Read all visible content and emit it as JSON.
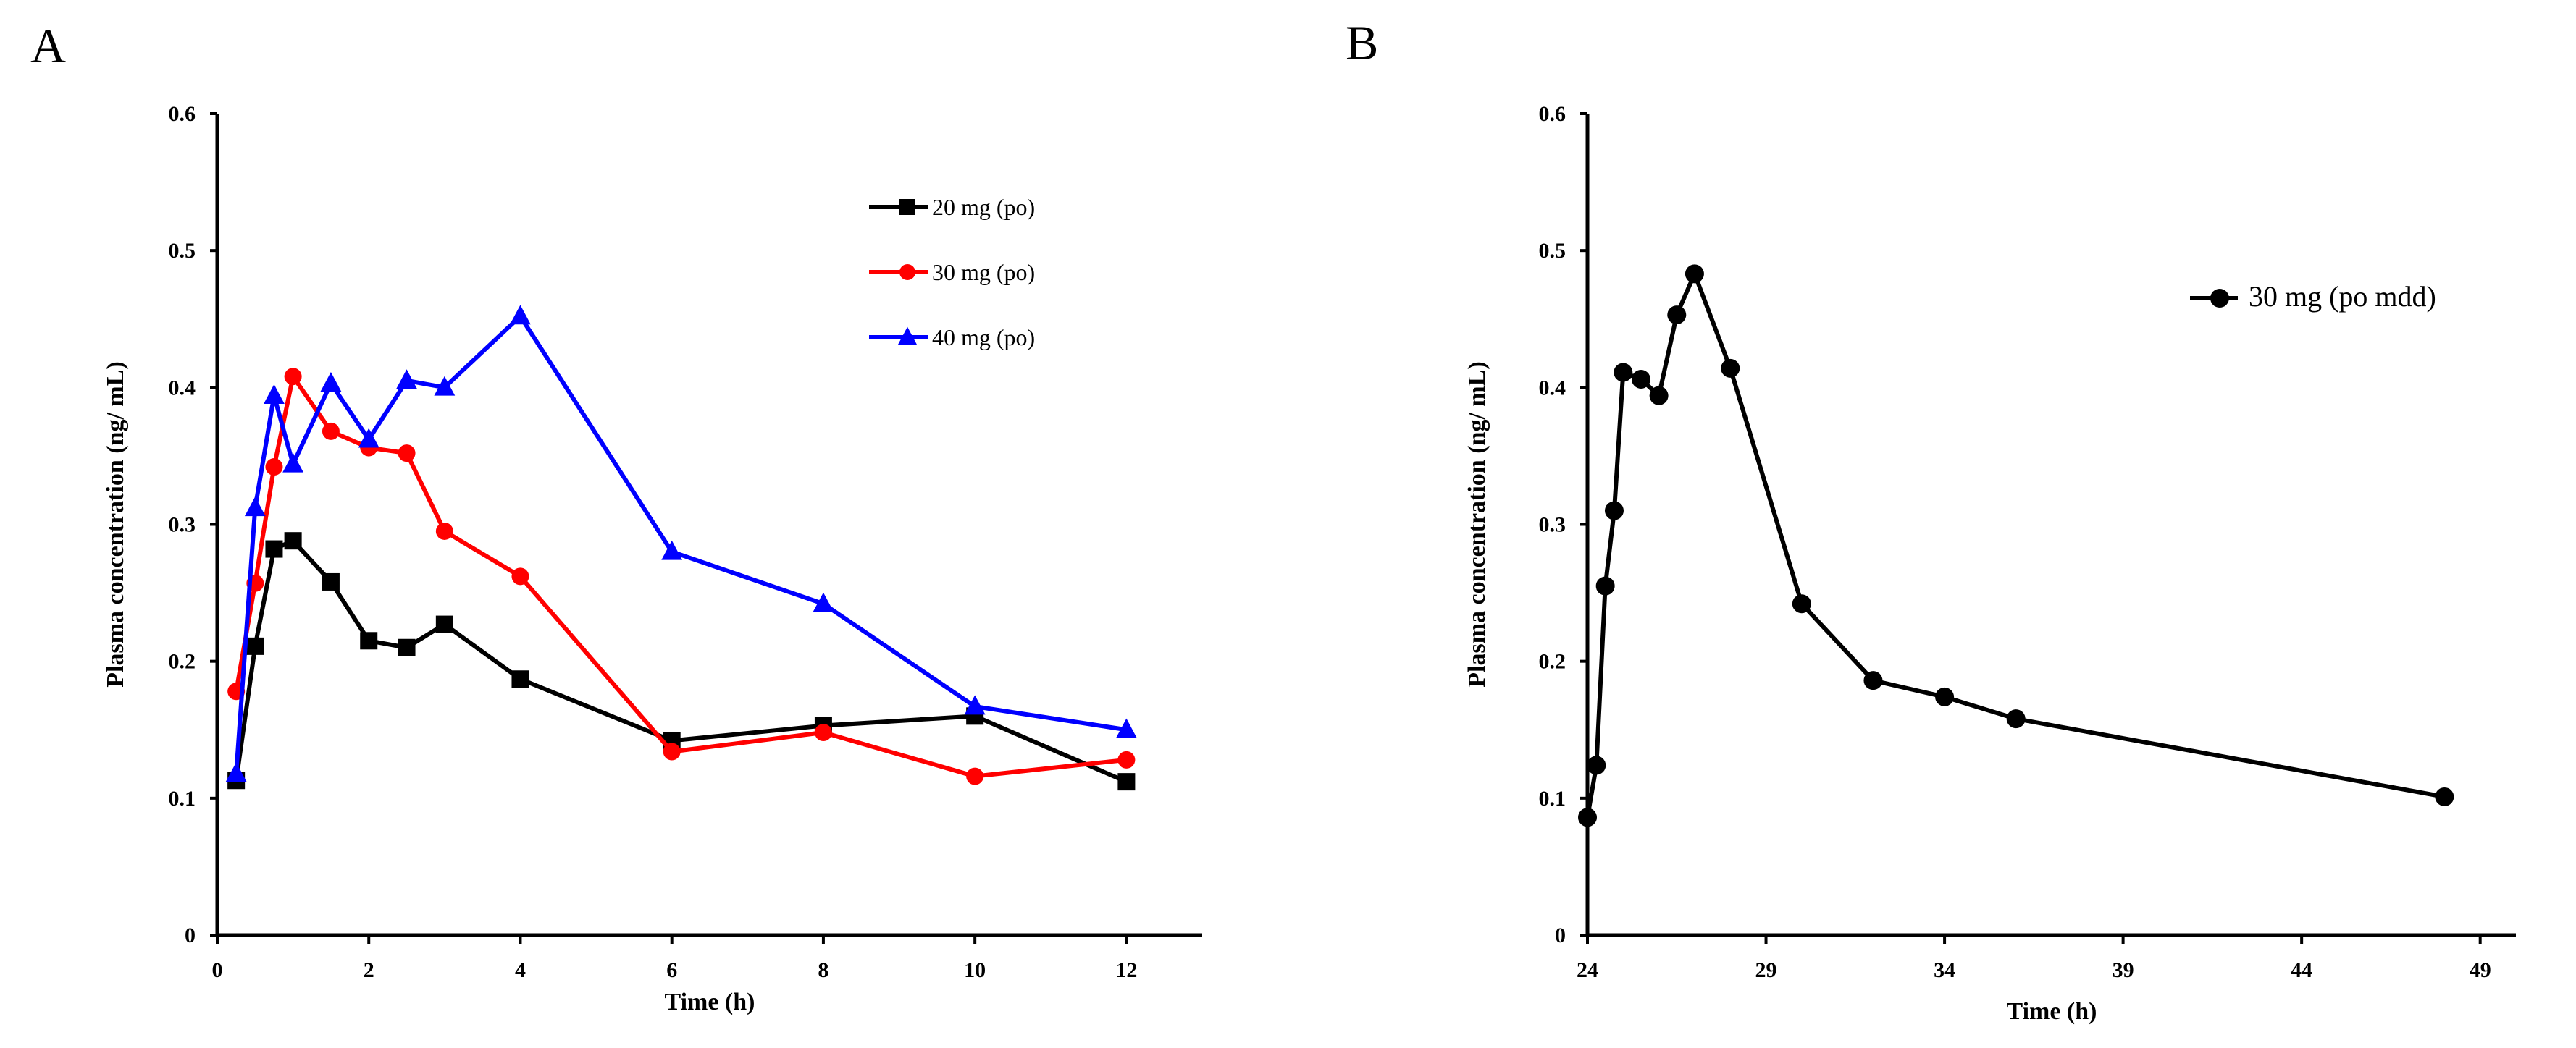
{
  "chart_data": [
    {
      "panel_label": "A",
      "type": "line",
      "xlabel": "Time (h)",
      "ylabel": "Plasma concentration (ng/ mL)",
      "xlim": [
        0,
        13
      ],
      "ylim": [
        0,
        0.6
      ],
      "x_ticks": [
        "0",
        "2",
        "4",
        "6",
        "8",
        "10",
        "12"
      ],
      "y_ticks": [
        "0",
        "0.1",
        "0.2",
        "0.3",
        "0.4",
        "0.5",
        "0.6"
      ],
      "legend_position": "top-right",
      "grid": false,
      "series": [
        {
          "name": "20 mg (po)",
          "color": "#000000",
          "marker": "square",
          "x": [
            0.25,
            0.5,
            0.75,
            1,
            1.5,
            2,
            2.5,
            3,
            4,
            6,
            8,
            10,
            12
          ],
          "y": [
            0.113,
            0.211,
            0.282,
            0.288,
            0.258,
            0.215,
            0.21,
            0.227,
            0.187,
            0.142,
            0.153,
            0.16,
            0.112
          ]
        },
        {
          "name": "30 mg (po)",
          "color": "#ff0000",
          "marker": "circle",
          "x": [
            0.25,
            0.5,
            0.75,
            1,
            1.5,
            2,
            2.5,
            3,
            4,
            6,
            8,
            10,
            12
          ],
          "y": [
            0.178,
            0.257,
            0.342,
            0.408,
            0.368,
            0.356,
            0.352,
            0.295,
            0.262,
            0.134,
            0.148,
            0.116,
            0.128
          ]
        },
        {
          "name": "40 mg (po)",
          "color": "#0000ff",
          "marker": "triangle",
          "x": [
            0.25,
            0.5,
            0.75,
            1,
            1.5,
            2,
            2.5,
            3,
            4,
            6,
            8,
            10,
            12
          ],
          "y": [
            0.118,
            0.312,
            0.394,
            0.344,
            0.403,
            0.362,
            0.405,
            0.4,
            0.452,
            0.28,
            0.242,
            0.167,
            0.15
          ]
        }
      ]
    },
    {
      "panel_label": "B",
      "type": "line",
      "xlabel": "Time (h)",
      "ylabel": "Plasma concentration (ng/ mL)",
      "xlim": [
        24,
        50
      ],
      "ylim": [
        0,
        0.6
      ],
      "x_ticks": [
        "24",
        "29",
        "34",
        "39",
        "44",
        "49"
      ],
      "y_ticks": [
        "0",
        "0.1",
        "0.2",
        "0.3",
        "0.4",
        "0.5",
        "0.6"
      ],
      "legend_position": "top-right",
      "grid": false,
      "series": [
        {
          "name": "30 mg (po mdd)",
          "color": "#000000",
          "marker": "circle",
          "x": [
            24,
            24.25,
            24.5,
            24.75,
            25,
            25.5,
            26,
            26.5,
            27,
            28,
            30,
            32,
            34,
            36,
            48
          ],
          "y": [
            0.086,
            0.124,
            0.255,
            0.31,
            0.411,
            0.406,
            0.394,
            0.453,
            0.483,
            0.414,
            0.242,
            0.186,
            0.174,
            0.158,
            0.101
          ]
        }
      ]
    }
  ]
}
